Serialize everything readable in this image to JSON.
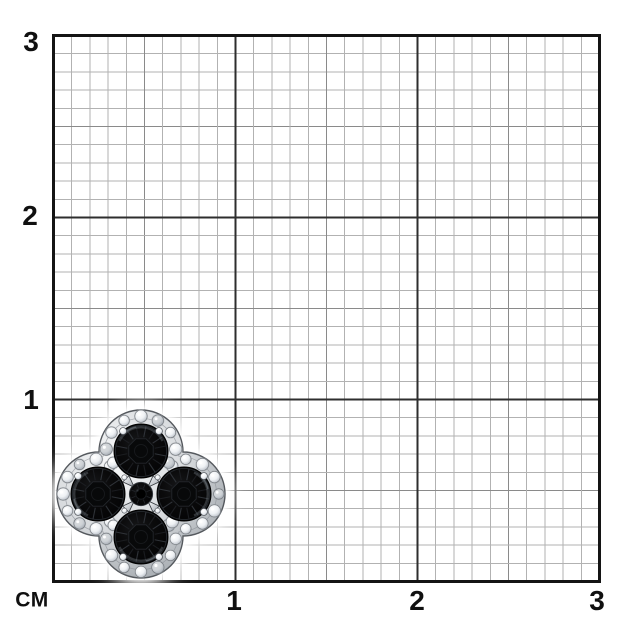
{
  "ruler": {
    "unit_label": "СМ",
    "x_tick_labels": [
      "1",
      "2",
      "3"
    ],
    "y_tick_labels": [
      "3",
      "2",
      "1"
    ]
  },
  "photo": {
    "subject": "clover-shaped jewelry with four black gemstones, center black stone and white gemstone halo in silver metal"
  },
  "colors": {
    "background": "#ffffff",
    "grid_minor": "#b2b2b2",
    "grid_half": "#8a8a8a",
    "grid_major": "#2e2e2e",
    "grid_border": "#141414",
    "label_text": "#101010",
    "metal_silver": "#aab0b6",
    "stone_black": "#070708",
    "stone_white": "#f2f4f6",
    "gold_accent": "#9b7b52"
  }
}
